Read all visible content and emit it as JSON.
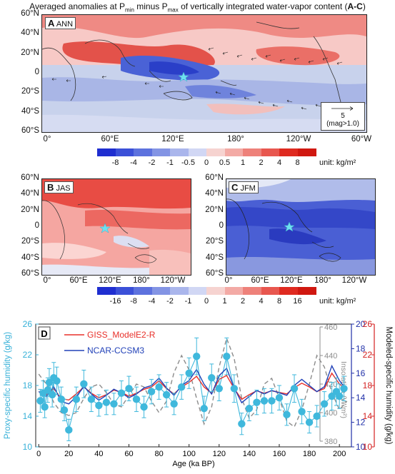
{
  "title": {
    "prefix": "Averaged anomalies at P",
    "min": "min",
    "mid": " minus P",
    "max": "max",
    "suffix": " of vertically integrated water-vapor content (",
    "bold": "A-C",
    "close": ")"
  },
  "panels": {
    "A": {
      "letter": "A",
      "season": "ANN"
    },
    "B": {
      "letter": "B",
      "season": "JAS"
    },
    "C": {
      "letter": "C",
      "season": "JFM"
    },
    "D": {
      "letter": "D"
    }
  },
  "map_axes": {
    "lat_a": [
      "60°N",
      "40°N",
      "20°N",
      "0",
      "20°S",
      "40°S",
      "60°S"
    ],
    "lon_a": [
      "0°",
      "60°E",
      "120°E",
      "180°",
      "120°W",
      "60°W"
    ],
    "lat_bc": [
      "60°N",
      "40°N",
      "20°N",
      "0",
      "20°S",
      "40°S",
      "60°S"
    ],
    "lon_b": [
      "0°",
      "60°E",
      "120°E",
      "180°",
      "120°W"
    ],
    "lon_c": [
      "0°",
      "60°E",
      "120°E",
      "180°",
      "120°W"
    ]
  },
  "vector_legend": {
    "value": "5",
    "note": "(mag>1.0)"
  },
  "colorbar_top": {
    "labels": [
      "-8",
      "-4",
      "-2",
      "-1",
      "-0.5",
      "0",
      "0.5",
      "1",
      "2",
      "4",
      "8"
    ],
    "unit": "unit: kg/m²"
  },
  "colorbar_bottom": {
    "labels": [
      "-16",
      "-8",
      "-4",
      "-2",
      "-1",
      "0",
      "1",
      "2",
      "4",
      "8",
      "16"
    ],
    "unit": "unit: kg/m²"
  },
  "colors": {
    "proxy": "#3fb8dc",
    "giss": "#e8302a",
    "ncar": "#2242b8",
    "insolation": "#8c8c8c",
    "left_axis": "#35b0d8",
    "right_axis_blue": "#2030a8",
    "right_axis_red": "#d42020"
  },
  "chart_data": {
    "type": "line",
    "xlabel": "Age (ka BP)",
    "xlim": [
      -2,
      208
    ],
    "xticks": [
      0,
      20,
      40,
      60,
      80,
      100,
      120,
      140,
      160,
      180,
      200
    ],
    "left_axis": {
      "label": "Proxy-specific humidity (g/kg)",
      "ylim": [
        10,
        26
      ],
      "ticks": [
        10,
        14,
        18,
        22,
        26
      ]
    },
    "right_axis_1": {
      "label": "",
      "ylim": [
        10,
        20
      ],
      "ticks": [
        10,
        12,
        14,
        16,
        18,
        20
      ]
    },
    "right_axis_2": {
      "label": "Modeled-specific humidity (g/kg)",
      "ylim": [
        10,
        26
      ],
      "ticks": [
        10,
        14,
        18,
        22,
        26
      ]
    },
    "insolation_axis": {
      "label": "Insolation (W/m²)",
      "ylim": [
        376,
        462
      ],
      "ticks": [
        380,
        400,
        420,
        440,
        460
      ]
    },
    "series": [
      {
        "name": "GISS_ModelE2-R",
        "axis": "right_axis_2",
        "x": [
          0,
          5,
          10,
          15,
          20,
          25,
          30,
          35,
          40,
          45,
          50,
          55,
          60,
          65,
          70,
          75,
          80,
          85,
          90,
          95,
          100,
          105,
          110,
          115,
          120,
          125,
          130,
          135,
          140,
          145,
          150,
          155,
          160,
          165,
          170,
          175,
          180,
          185,
          190,
          195,
          200,
          205
        ],
        "y": [
          17.2,
          16.8,
          17.6,
          16.3,
          16.1,
          16.9,
          17.8,
          17.0,
          16.4,
          16.8,
          17.4,
          17.1,
          16.6,
          17.0,
          17.5,
          17.8,
          18.6,
          17.6,
          16.9,
          17.8,
          18.4,
          19.2,
          17.8,
          17.0,
          18.8,
          19.3,
          17.6,
          16.2,
          16.8,
          17.3,
          17.0,
          17.3,
          17.1,
          16.9,
          17.7,
          18.3,
          17.8,
          17.2,
          17.6,
          19.6,
          18.2,
          17.4
        ]
      },
      {
        "name": "NCAR-CCSM3",
        "axis": "right_axis_1",
        "x": [
          0,
          5,
          10,
          15,
          20,
          25,
          30,
          35,
          40,
          45,
          50,
          55,
          60,
          65,
          70,
          75,
          80,
          85,
          90,
          95,
          100,
          105,
          110,
          115,
          120,
          125,
          130,
          135,
          140,
          145,
          150,
          155,
          160,
          165,
          170,
          175,
          180,
          185,
          190,
          195,
          200,
          205
        ],
        "y": [
          14.5,
          14.1,
          14.9,
          13.7,
          13.5,
          14.1,
          14.9,
          14.3,
          13.8,
          14.2,
          14.7,
          14.4,
          14.0,
          14.3,
          14.8,
          15.0,
          15.6,
          14.8,
          14.2,
          15.0,
          15.4,
          16.3,
          15.1,
          14.3,
          15.8,
          16.4,
          14.8,
          13.6,
          14.1,
          14.6,
          14.3,
          14.6,
          14.4,
          14.2,
          15.0,
          15.5,
          15.0,
          14.5,
          14.9,
          16.6,
          15.4,
          14.6
        ]
      },
      {
        "name": "Insolation",
        "axis": "insolation_axis",
        "x": [
          0,
          5,
          10,
          15,
          20,
          25,
          30,
          35,
          40,
          45,
          50,
          55,
          60,
          65,
          70,
          75,
          80,
          85,
          90,
          95,
          100,
          105,
          110,
          115,
          120,
          125,
          130,
          135,
          140,
          145,
          150,
          155,
          160,
          165,
          170,
          175,
          180,
          185,
          190,
          195,
          200,
          205
        ],
        "y": [
          427,
          420,
          407,
          400,
          398,
          400,
          410,
          418,
          420,
          414,
          406,
          404,
          412,
          420,
          418,
          408,
          400,
          408,
          428,
          440,
          430,
          410,
          392,
          404,
          432,
          452,
          438,
          410,
          396,
          402,
          420,
          424,
          410,
          394,
          390,
          402,
          420,
          440,
          432,
          414,
          402,
          408
        ]
      },
      {
        "name": "Proxy",
        "axis": "left_axis",
        "x": [
          1,
          3,
          4,
          6,
          7,
          9,
          10,
          12,
          15,
          17,
          20,
          25,
          30,
          35,
          40,
          45,
          50,
          55,
          60,
          65,
          70,
          75,
          80,
          85,
          90,
          95,
          100,
          105,
          110,
          115,
          120,
          125,
          130,
          135,
          140,
          145,
          150,
          155,
          160,
          165,
          170,
          175,
          180,
          185,
          190,
          195,
          198,
          200,
          203
        ],
        "y": [
          16.0,
          17.0,
          15.2,
          17.4,
          18.4,
          16.8,
          19.0,
          18.6,
          16.2,
          14.8,
          12.2,
          16.2,
          18.2,
          16.2,
          15.4,
          15.8,
          15.6,
          17.0,
          17.6,
          16.2,
          15.2,
          17.2,
          17.8,
          16.8,
          15.6,
          17.8,
          19.6,
          21.8,
          15.0,
          19.0,
          17.6,
          21.8,
          17.6,
          13.0,
          15.0,
          15.8,
          16.0,
          16.0,
          16.4,
          14.2,
          17.6,
          14.6,
          13.2,
          14.0,
          15.6,
          16.6,
          17.2,
          16.6,
          17.6
        ],
        "err": [
          1.5,
          1.6,
          1.4,
          1.6,
          1.8,
          1.6,
          2.0,
          1.8,
          1.6,
          1.4,
          1.4,
          1.6,
          1.8,
          1.6,
          1.4,
          1.6,
          1.4,
          1.6,
          1.6,
          1.6,
          1.4,
          1.6,
          1.6,
          1.6,
          1.4,
          1.6,
          2.0,
          2.4,
          1.6,
          1.8,
          1.6,
          2.4,
          1.8,
          1.4,
          1.6,
          1.6,
          1.6,
          1.6,
          1.6,
          1.4,
          1.8,
          1.6,
          1.4,
          1.4,
          1.6,
          1.8,
          1.8,
          1.6,
          1.6
        ]
      }
    ],
    "legend": [
      "GISS_ModelE2-R",
      "NCAR-CCSM3"
    ]
  }
}
